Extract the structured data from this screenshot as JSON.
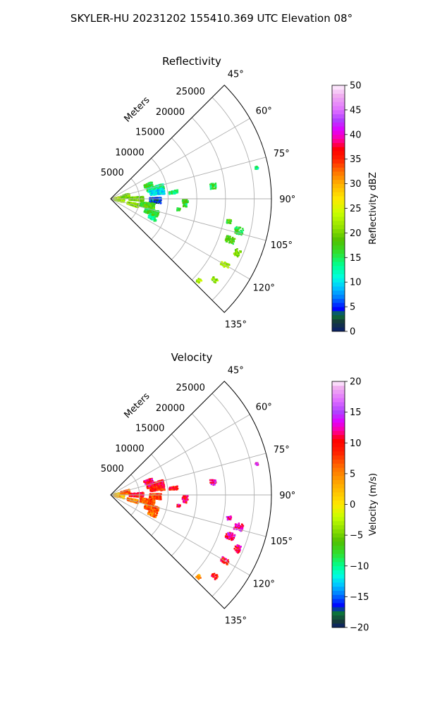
{
  "figure": {
    "title": "SKYLER-HU  20231202  155410.369 UTC Elevation 08°"
  },
  "chart_data": [
    {
      "type": "polar-sector",
      "title": "Reflectivity",
      "radial_label": "Meters",
      "radial_ticks": [
        5000,
        10000,
        15000,
        20000,
        25000
      ],
      "radial_max": 28000,
      "angle_ticks": [
        "45°",
        "60°",
        "75°",
        "90°",
        "105°",
        "120°",
        "135°"
      ],
      "angle_values": [
        45,
        60,
        75,
        90,
        105,
        120,
        135
      ],
      "grid": true,
      "colorbar": {
        "label": "Reflectivity dBZ",
        "min": 0,
        "max": 50,
        "ticks": [
          "0",
          "5",
          "10",
          "15",
          "20",
          "25",
          "30",
          "35",
          "40",
          "45",
          "50"
        ],
        "stops": [
          [
            0,
            "#0a1e6e"
          ],
          [
            2,
            "#163a3a"
          ],
          [
            3.5,
            "#0a7a3a"
          ],
          [
            4.5,
            "#0000ff"
          ],
          [
            7,
            "#0080ff"
          ],
          [
            9,
            "#00c8ff"
          ],
          [
            11,
            "#00ffe0"
          ],
          [
            13.5,
            "#00ff90"
          ],
          [
            16,
            "#30e030"
          ],
          [
            18.5,
            "#50c000"
          ],
          [
            21,
            "#90e000"
          ],
          [
            24,
            "#c8ff00"
          ],
          [
            27,
            "#ffe800"
          ],
          [
            30,
            "#ffb000"
          ],
          [
            32.5,
            "#ff7000"
          ],
          [
            35,
            "#ff2000"
          ],
          [
            37,
            "#ff0000"
          ],
          [
            39,
            "#ff00a0"
          ],
          [
            41,
            "#e000ff"
          ],
          [
            43,
            "#b040ff"
          ],
          [
            45,
            "#e070ff"
          ],
          [
            48,
            "#f0b0f0"
          ],
          [
            50,
            "#fff0ff"
          ]
        ]
      },
      "echo_clusters": [
        {
          "az": 86,
          "r": 900,
          "dr": 1400,
          "daz": 18,
          "val": 24
        },
        {
          "az": 95,
          "r": 1500,
          "dr": 1800,
          "daz": 20,
          "val": 22
        },
        {
          "az": 80,
          "r": 2600,
          "dr": 1500,
          "daz": 12,
          "val": 20
        },
        {
          "az": 70,
          "r": 7000,
          "dr": 1500,
          "daz": 5,
          "val": 17
        },
        {
          "az": 77,
          "r": 8000,
          "dr": 3000,
          "daz": 6,
          "val": 14
        },
        {
          "az": 82,
          "r": 8200,
          "dr": 2500,
          "daz": 6,
          "val": 10
        },
        {
          "az": 92,
          "r": 7800,
          "dr": 2000,
          "daz": 7,
          "val": 4
        },
        {
          "az": 100,
          "r": 6500,
          "dr": 2500,
          "daz": 8,
          "val": 18
        },
        {
          "az": 108,
          "r": 7500,
          "dr": 2500,
          "daz": 7,
          "val": 16
        },
        {
          "az": 115,
          "r": 8000,
          "dr": 1500,
          "daz": 4,
          "val": 14
        },
        {
          "az": 90,
          "r": 4500,
          "dr": 2500,
          "daz": 8,
          "val": 20
        },
        {
          "az": 104,
          "r": 4000,
          "dr": 2000,
          "daz": 7,
          "val": 21
        },
        {
          "az": 84,
          "r": 11000,
          "dr": 1500,
          "daz": 3,
          "val": 14
        },
        {
          "az": 92,
          "r": 13000,
          "dr": 1000,
          "daz": 3,
          "val": 17
        },
        {
          "az": 95,
          "r": 13000,
          "dr": 600,
          "daz": 2,
          "val": 15
        },
        {
          "az": 99,
          "r": 12000,
          "dr": 500,
          "daz": 2,
          "val": 17
        },
        {
          "az": 83,
          "r": 18000,
          "dr": 1000,
          "daz": 3,
          "val": 16
        },
        {
          "az": 101,
          "r": 21000,
          "dr": 800,
          "daz": 2,
          "val": 18
        },
        {
          "az": 104,
          "r": 23000,
          "dr": 1500,
          "daz": 3,
          "val": 16
        },
        {
          "az": 109,
          "r": 22000,
          "dr": 1500,
          "daz": 3,
          "val": 18
        },
        {
          "az": 113,
          "r": 24000,
          "dr": 1000,
          "daz": 3,
          "val": 20
        },
        {
          "az": 120,
          "r": 23000,
          "dr": 1500,
          "daz": 2,
          "val": 22
        },
        {
          "az": 128,
          "r": 23000,
          "dr": 1000,
          "daz": 2,
          "val": 21
        },
        {
          "az": 133,
          "r": 21000,
          "dr": 700,
          "daz": 2,
          "val": 23
        },
        {
          "az": 78,
          "r": 26000,
          "dr": 500,
          "daz": 1,
          "val": 13
        }
      ]
    },
    {
      "type": "polar-sector",
      "title": "Velocity",
      "radial_label": "Meters",
      "radial_ticks": [
        5000,
        10000,
        15000,
        20000,
        25000
      ],
      "radial_max": 28000,
      "angle_ticks": [
        "45°",
        "60°",
        "75°",
        "90°",
        "105°",
        "120°",
        "135°"
      ],
      "angle_values": [
        45,
        60,
        75,
        90,
        105,
        120,
        135
      ],
      "grid": true,
      "colorbar": {
        "label": "Velocity (m/s)",
        "min": -20,
        "max": 20,
        "ticks": [
          "−20",
          "−15",
          "−10",
          "−5",
          "0",
          "5",
          "10",
          "15",
          "20"
        ],
        "stops": [
          [
            -20,
            "#0a1e6e"
          ],
          [
            -19,
            "#163a3a"
          ],
          [
            -17.5,
            "#0a7a3a"
          ],
          [
            -16.5,
            "#0000ff"
          ],
          [
            -14.5,
            "#0080ff"
          ],
          [
            -13,
            "#00c8ff"
          ],
          [
            -11.5,
            "#00ffe0"
          ],
          [
            -10,
            "#00ff90"
          ],
          [
            -8,
            "#30e030"
          ],
          [
            -6,
            "#50c000"
          ],
          [
            -4,
            "#90e000"
          ],
          [
            -2,
            "#c8ff00"
          ],
          [
            0,
            "#ffe800"
          ],
          [
            3,
            "#ffb000"
          ],
          [
            6,
            "#ff7000"
          ],
          [
            8.5,
            "#ff2000"
          ],
          [
            10.5,
            "#ff0000"
          ],
          [
            12,
            "#ff00a0"
          ],
          [
            13.5,
            "#e000ff"
          ],
          [
            15,
            "#b040ff"
          ],
          [
            17,
            "#e070ff"
          ],
          [
            19,
            "#f0b0f0"
          ],
          [
            20,
            "#fff0ff"
          ]
        ]
      },
      "echo_clusters": [
        {
          "az": 86,
          "r": 900,
          "dr": 1400,
          "daz": 18,
          "val": 1
        },
        {
          "az": 95,
          "r": 1500,
          "dr": 1800,
          "daz": 20,
          "val": 3
        },
        {
          "az": 80,
          "r": 2600,
          "dr": 1500,
          "daz": 12,
          "val": 7
        },
        {
          "az": 70,
          "r": 7000,
          "dr": 1500,
          "daz": 5,
          "val": 11
        },
        {
          "az": 77,
          "r": 8000,
          "dr": 3000,
          "daz": 6,
          "val": 10
        },
        {
          "az": 82,
          "r": 8200,
          "dr": 2500,
          "daz": 6,
          "val": 9
        },
        {
          "az": 92,
          "r": 7800,
          "dr": 2000,
          "daz": 7,
          "val": 8
        },
        {
          "az": 100,
          "r": 6500,
          "dr": 2500,
          "daz": 8,
          "val": 7
        },
        {
          "az": 108,
          "r": 7500,
          "dr": 2500,
          "daz": 7,
          "val": 7
        },
        {
          "az": 115,
          "r": 8000,
          "dr": 1500,
          "daz": 4,
          "val": 6
        },
        {
          "az": 90,
          "r": 4500,
          "dr": 2500,
          "daz": 8,
          "val": 9
        },
        {
          "az": 104,
          "r": 4000,
          "dr": 2000,
          "daz": 7,
          "val": 5
        },
        {
          "az": 84,
          "r": 11000,
          "dr": 1500,
          "daz": 3,
          "val": 10
        },
        {
          "az": 92,
          "r": 13000,
          "dr": 1000,
          "daz": 3,
          "val": 11
        },
        {
          "az": 95,
          "r": 13000,
          "dr": 600,
          "daz": 2,
          "val": 10
        },
        {
          "az": 99,
          "r": 12000,
          "dr": 500,
          "daz": 2,
          "val": 11
        },
        {
          "az": 83,
          "r": 18000,
          "dr": 1000,
          "daz": 3,
          "val": 13
        },
        {
          "az": 101,
          "r": 21000,
          "dr": 800,
          "daz": 2,
          "val": 13
        },
        {
          "az": 104,
          "r": 23000,
          "dr": 1500,
          "daz": 3,
          "val": 12
        },
        {
          "az": 109,
          "r": 22000,
          "dr": 1500,
          "daz": 3,
          "val": 12
        },
        {
          "az": 113,
          "r": 24000,
          "dr": 1000,
          "daz": 3,
          "val": 11
        },
        {
          "az": 120,
          "r": 23000,
          "dr": 1500,
          "daz": 2,
          "val": 10
        },
        {
          "az": 128,
          "r": 23000,
          "dr": 1000,
          "daz": 2,
          "val": 9
        },
        {
          "az": 133,
          "r": 21000,
          "dr": 700,
          "daz": 2,
          "val": 4
        },
        {
          "az": 78,
          "r": 26000,
          "dr": 500,
          "daz": 1,
          "val": 13
        }
      ]
    }
  ]
}
